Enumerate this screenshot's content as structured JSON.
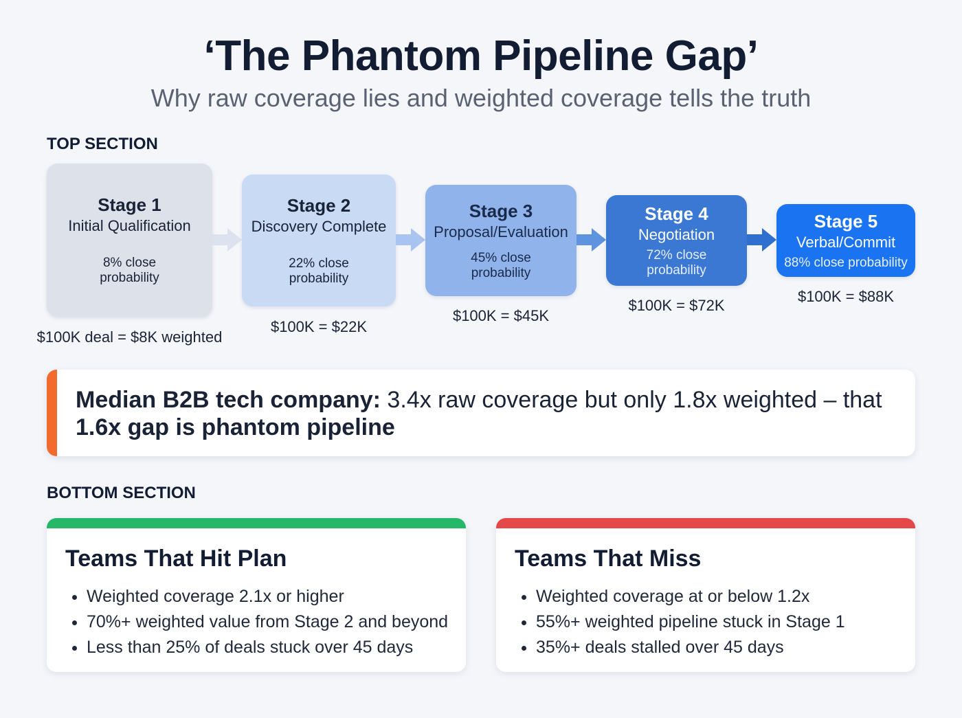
{
  "header": {
    "title": "‘The Phantom Pipeline Gap’",
    "subtitle": "Why raw coverage lies and weighted coverage tells the truth"
  },
  "top_section": {
    "label": "TOP SECTION",
    "stages": [
      {
        "name": "Stage 1",
        "description": "Initial Qualification",
        "probability_line1": "8% close",
        "probability_line2": "probability",
        "close_probability_pct": 8,
        "value_text": "$100K deal = $8K weighted",
        "color": "#dde2ea"
      },
      {
        "name": "Stage 2",
        "description": "Discovery Complete",
        "probability_line1": "22% close",
        "probability_line2": "probability",
        "close_probability_pct": 22,
        "value_text": "$100K = $22K",
        "color": "#c9daf5"
      },
      {
        "name": "Stage 3",
        "description": "Proposal/Evaluation",
        "probability_line1": "45% close",
        "probability_line2": "probability",
        "close_probability_pct": 45,
        "value_text": "$100K = $45K",
        "color": "#8fb3ea"
      },
      {
        "name": "Stage 4",
        "description": "Negotiation",
        "probability_line1": "72% close",
        "probability_line2": "probability",
        "close_probability_pct": 72,
        "value_text": "$100K = $72K",
        "color": "#3a78d4"
      },
      {
        "name": "Stage 5",
        "description": "Verbal/Commit",
        "probability_line1": "88% close probability",
        "probability_line2": "",
        "close_probability_pct": 88,
        "value_text": "$100K = $88K",
        "color": "#1a73f0"
      }
    ]
  },
  "callout": {
    "bold_lead": "Median B2B tech company:",
    "body": " 3.4x raw coverage but only 1.8x weighted – that ",
    "bold_tail": "1.6x gap is phantom pipeline",
    "accent_color": "#f26a2e"
  },
  "bottom_section": {
    "label": "BOTTOM SECTION",
    "hit": {
      "title": "Teams That Hit Plan",
      "color": "#25b866",
      "bullets": [
        "Weighted coverage 2.1x or higher",
        "70%+ weighted value from Stage 2 and beyond",
        "Less than 25% of deals stuck over 45 days"
      ]
    },
    "miss": {
      "title": "Teams That Miss",
      "color": "#e54848",
      "bullets": [
        "Weighted coverage at or below 1.2x",
        "55%+ weighted pipeline stuck in Stage 1",
        "35%+ deals stalled over 45 days"
      ]
    }
  }
}
